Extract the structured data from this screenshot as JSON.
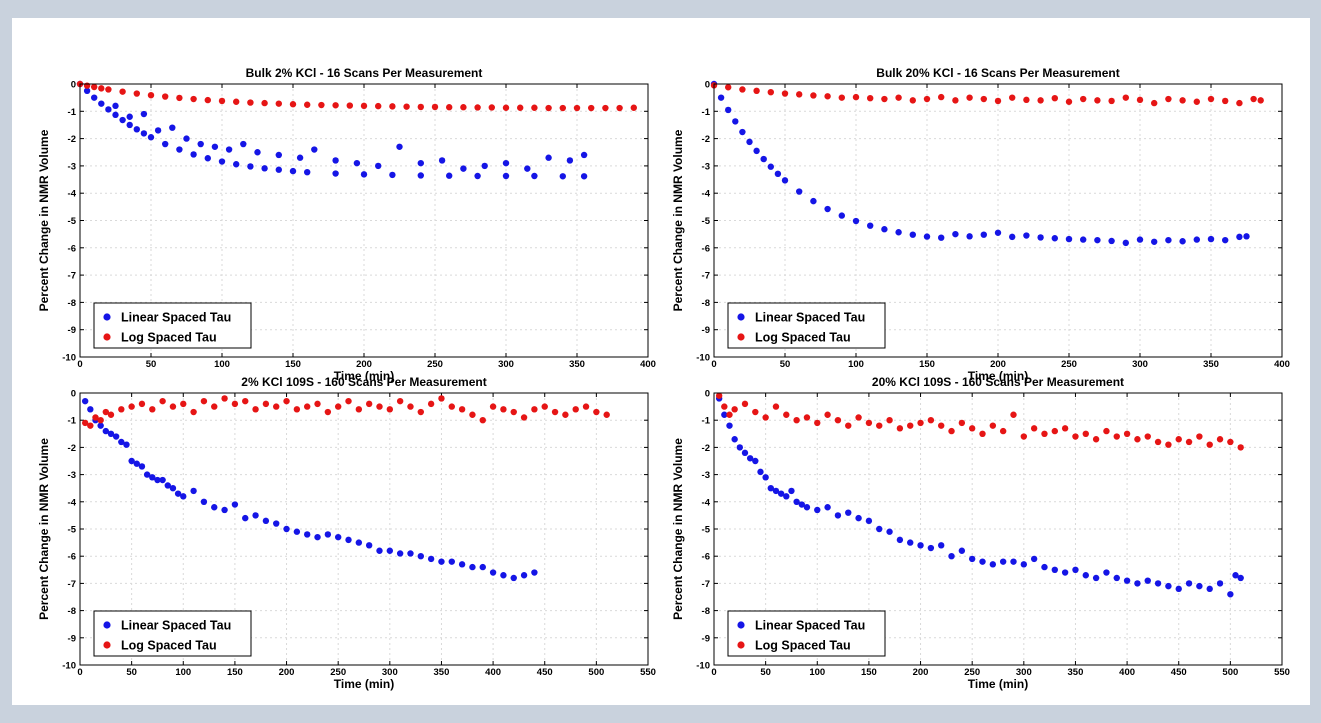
{
  "colors": {
    "linear": "#1515e6",
    "log": "#e61515",
    "page_border": "#c9d2dd"
  },
  "chart_data": [
    {
      "type": "scatter",
      "title": "Bulk 2% KCl - 16 Scans Per Measurement",
      "xlabel": "Time (min)",
      "ylabel": "Percent Change in NMR Volume",
      "xlim": [
        0,
        400
      ],
      "ylim": [
        -10,
        0
      ],
      "xticks": [
        0,
        50,
        100,
        150,
        200,
        250,
        300,
        350,
        400
      ],
      "yticks": [
        0,
        -1,
        -2,
        -3,
        -4,
        -5,
        -6,
        -7,
        -8,
        -9,
        -10
      ],
      "grid": true,
      "legend_position": "bottom-left",
      "series": [
        {
          "name": "Linear Spaced Tau",
          "color": "#1515e6",
          "x": [
            0,
            5,
            10,
            15,
            20,
            25,
            30,
            35,
            40,
            45,
            50,
            60,
            70,
            80,
            90,
            100,
            110,
            120,
            130,
            140,
            150,
            160,
            180,
            200,
            220,
            240,
            260,
            280,
            300,
            320,
            340,
            355,
            25,
            35,
            45,
            55,
            65,
            75,
            85,
            95,
            105,
            115,
            125,
            140,
            155,
            165,
            180,
            195,
            210,
            225,
            240,
            255,
            270,
            285,
            300,
            315,
            330,
            345,
            355
          ],
          "y": [
            0,
            -0.25,
            -0.5,
            -0.72,
            -0.93,
            -1.13,
            -1.32,
            -1.5,
            -1.66,
            -1.81,
            -1.95,
            -2.2,
            -2.4,
            -2.58,
            -2.72,
            -2.84,
            -2.94,
            -3.02,
            -3.09,
            -3.14,
            -3.19,
            -3.23,
            -3.28,
            -3.31,
            -3.33,
            -3.35,
            -3.36,
            -3.37,
            -3.37,
            -3.37,
            -3.38,
            -3.38,
            -0.8,
            -1.2,
            -1.1,
            -1.7,
            -1.6,
            -2.0,
            -2.2,
            -2.3,
            -2.4,
            -2.2,
            -2.5,
            -2.6,
            -2.7,
            -2.4,
            -2.8,
            -2.9,
            -3.0,
            -2.3,
            -2.9,
            -2.8,
            -3.1,
            -3.0,
            -2.9,
            -3.1,
            -2.7,
            -2.8,
            -2.6
          ]
        },
        {
          "name": "Log Spaced Tau",
          "color": "#e61515",
          "x": [
            0,
            5,
            10,
            15,
            20,
            30,
            40,
            50,
            60,
            70,
            80,
            90,
            100,
            110,
            120,
            130,
            140,
            150,
            160,
            170,
            180,
            190,
            200,
            210,
            220,
            230,
            240,
            250,
            260,
            270,
            280,
            290,
            300,
            310,
            320,
            330,
            340,
            350,
            360,
            370,
            380,
            390
          ],
          "y": [
            0,
            -0.06,
            -0.11,
            -0.16,
            -0.2,
            -0.28,
            -0.35,
            -0.41,
            -0.46,
            -0.51,
            -0.55,
            -0.59,
            -0.62,
            -0.65,
            -0.68,
            -0.7,
            -0.72,
            -0.74,
            -0.76,
            -0.77,
            -0.78,
            -0.79,
            -0.8,
            -0.81,
            -0.82,
            -0.83,
            -0.84,
            -0.84,
            -0.85,
            -0.85,
            -0.86,
            -0.86,
            -0.87,
            -0.87,
            -0.87,
            -0.88,
            -0.88,
            -0.88,
            -0.88,
            -0.88,
            -0.88,
            -0.87
          ]
        }
      ]
    },
    {
      "type": "scatter",
      "title": "Bulk 20% KCl - 16 Scans Per Measurement",
      "xlabel": "Time (min)",
      "ylabel": "Percent Change in NMR Volume",
      "xlim": [
        0,
        400
      ],
      "ylim": [
        -10,
        0
      ],
      "xticks": [
        0,
        50,
        100,
        150,
        200,
        250,
        300,
        350,
        400
      ],
      "yticks": [
        0,
        -1,
        -2,
        -3,
        -4,
        -5,
        -6,
        -7,
        -8,
        -9,
        -10
      ],
      "grid": true,
      "legend_position": "bottom-left",
      "series": [
        {
          "name": "Linear Spaced Tau",
          "color": "#1515e6",
          "x": [
            0,
            5,
            10,
            15,
            20,
            25,
            30,
            35,
            40,
            45,
            50,
            60,
            70,
            80,
            90,
            100,
            110,
            120,
            130,
            140,
            150,
            160,
            170,
            180,
            190,
            200,
            210,
            220,
            230,
            240,
            250,
            260,
            270,
            280,
            290,
            300,
            310,
            320,
            330,
            340,
            350,
            360,
            370,
            375
          ],
          "y": [
            0,
            -0.5,
            -0.95,
            -1.37,
            -1.76,
            -2.12,
            -2.45,
            -2.75,
            -3.03,
            -3.29,
            -3.53,
            -3.94,
            -4.29,
            -4.58,
            -4.82,
            -5.02,
            -5.19,
            -5.32,
            -5.43,
            -5.52,
            -5.59,
            -5.63,
            -5.5,
            -5.58,
            -5.52,
            -5.45,
            -5.6,
            -5.55,
            -5.62,
            -5.65,
            -5.68,
            -5.7,
            -5.72,
            -5.75,
            -5.82,
            -5.7,
            -5.78,
            -5.72,
            -5.76,
            -5.7,
            -5.68,
            -5.72,
            -5.6,
            -5.58
          ]
        },
        {
          "name": "Log Spaced Tau",
          "color": "#e61515",
          "x": [
            0,
            10,
            20,
            30,
            40,
            50,
            60,
            70,
            80,
            90,
            100,
            110,
            120,
            130,
            140,
            150,
            160,
            170,
            180,
            190,
            200,
            210,
            220,
            230,
            240,
            250,
            260,
            270,
            280,
            290,
            300,
            310,
            320,
            330,
            340,
            350,
            360,
            370,
            380,
            385
          ],
          "y": [
            -0.05,
            -0.12,
            -0.2,
            -0.25,
            -0.3,
            -0.35,
            -0.38,
            -0.42,
            -0.45,
            -0.5,
            -0.48,
            -0.52,
            -0.55,
            -0.5,
            -0.6,
            -0.55,
            -0.48,
            -0.6,
            -0.5,
            -0.55,
            -0.62,
            -0.5,
            -0.58,
            -0.6,
            -0.52,
            -0.65,
            -0.55,
            -0.6,
            -0.62,
            -0.5,
            -0.58,
            -0.7,
            -0.55,
            -0.6,
            -0.65,
            -0.55,
            -0.62,
            -0.7,
            -0.55,
            -0.6
          ]
        }
      ]
    },
    {
      "type": "scatter",
      "title": "2% KCl 109S - 160 Scans Per Measurement",
      "xlabel": "Time (min)",
      "ylabel": "Percent Change in NMR Volume",
      "xlim": [
        0,
        550
      ],
      "ylim": [
        -10,
        0
      ],
      "xticks": [
        0,
        50,
        100,
        150,
        200,
        250,
        300,
        350,
        400,
        450,
        500,
        550
      ],
      "yticks": [
        0,
        -1,
        -2,
        -3,
        -4,
        -5,
        -6,
        -7,
        -8,
        -9,
        -10
      ],
      "grid": true,
      "legend_position": "bottom-left",
      "series": [
        {
          "name": "Linear Spaced Tau",
          "color": "#1515e6",
          "x": [
            5,
            10,
            15,
            20,
            25,
            30,
            35,
            40,
            45,
            50,
            55,
            60,
            65,
            70,
            75,
            80,
            85,
            90,
            95,
            100,
            110,
            120,
            130,
            140,
            150,
            160,
            170,
            180,
            190,
            200,
            210,
            220,
            230,
            240,
            250,
            260,
            270,
            280,
            290,
            300,
            310,
            320,
            330,
            340,
            350,
            360,
            370,
            380,
            390,
            400,
            410,
            420,
            430,
            440
          ],
          "y": [
            -0.3,
            -0.6,
            -1.0,
            -1.2,
            -1.4,
            -1.5,
            -1.6,
            -1.8,
            -1.9,
            -2.5,
            -2.6,
            -2.7,
            -3.0,
            -3.1,
            -3.2,
            -3.2,
            -3.4,
            -3.5,
            -3.7,
            -3.8,
            -3.6,
            -4.0,
            -4.2,
            -4.3,
            -4.1,
            -4.6,
            -4.5,
            -4.7,
            -4.8,
            -5.0,
            -5.1,
            -5.2,
            -5.3,
            -5.2,
            -5.3,
            -5.4,
            -5.5,
            -5.6,
            -5.8,
            -5.8,
            -5.9,
            -5.9,
            -6.0,
            -6.1,
            -6.2,
            -6.2,
            -6.3,
            -6.4,
            -6.4,
            -6.6,
            -6.7,
            -6.8,
            -6.7,
            -6.6
          ]
        },
        {
          "name": "Log Spaced Tau",
          "color": "#e61515",
          "x": [
            5,
            10,
            15,
            20,
            25,
            30,
            40,
            50,
            60,
            70,
            80,
            90,
            100,
            110,
            120,
            130,
            140,
            150,
            160,
            170,
            180,
            190,
            200,
            210,
            220,
            230,
            240,
            250,
            260,
            270,
            280,
            290,
            300,
            310,
            320,
            330,
            340,
            350,
            360,
            370,
            380,
            390,
            400,
            410,
            420,
            430,
            440,
            450,
            460,
            470,
            480,
            490,
            500,
            510
          ],
          "y": [
            -1.1,
            -1.2,
            -0.9,
            -1.0,
            -0.7,
            -0.8,
            -0.6,
            -0.5,
            -0.4,
            -0.6,
            -0.3,
            -0.5,
            -0.4,
            -0.7,
            -0.3,
            -0.5,
            -0.2,
            -0.4,
            -0.3,
            -0.6,
            -0.4,
            -0.5,
            -0.3,
            -0.6,
            -0.5,
            -0.4,
            -0.7,
            -0.5,
            -0.3,
            -0.6,
            -0.4,
            -0.5,
            -0.6,
            -0.3,
            -0.5,
            -0.7,
            -0.4,
            -0.2,
            -0.5,
            -0.6,
            -0.8,
            -1.0,
            -0.5,
            -0.6,
            -0.7,
            -0.9,
            -0.6,
            -0.5,
            -0.7,
            -0.8,
            -0.6,
            -0.5,
            -0.7,
            -0.8
          ]
        }
      ]
    },
    {
      "type": "scatter",
      "title": "20% KCl 109S - 160 Scans Per Measurement",
      "xlabel": "Time (min)",
      "ylabel": "Percent Change in NMR Volume",
      "xlim": [
        0,
        550
      ],
      "ylim": [
        -10,
        0
      ],
      "xticks": [
        0,
        50,
        100,
        150,
        200,
        250,
        300,
        350,
        400,
        450,
        500,
        550
      ],
      "yticks": [
        0,
        -1,
        -2,
        -3,
        -4,
        -5,
        -6,
        -7,
        -8,
        -9,
        -10
      ],
      "grid": true,
      "legend_position": "bottom-left",
      "series": [
        {
          "name": "Linear Spaced Tau",
          "color": "#1515e6",
          "x": [
            5,
            10,
            15,
            20,
            25,
            30,
            35,
            40,
            45,
            50,
            55,
            60,
            65,
            70,
            75,
            80,
            85,
            90,
            100,
            110,
            120,
            130,
            140,
            150,
            160,
            170,
            180,
            190,
            200,
            210,
            220,
            230,
            240,
            250,
            260,
            270,
            280,
            290,
            300,
            310,
            320,
            330,
            340,
            350,
            360,
            370,
            380,
            390,
            400,
            410,
            420,
            430,
            440,
            450,
            460,
            470,
            480,
            490,
            500,
            505,
            510
          ],
          "y": [
            -0.2,
            -0.8,
            -1.2,
            -1.7,
            -2.0,
            -2.2,
            -2.4,
            -2.5,
            -2.9,
            -3.1,
            -3.5,
            -3.6,
            -3.7,
            -3.8,
            -3.6,
            -4.0,
            -4.1,
            -4.2,
            -4.3,
            -4.2,
            -4.5,
            -4.4,
            -4.6,
            -4.7,
            -5.0,
            -5.1,
            -5.4,
            -5.5,
            -5.6,
            -5.7,
            -5.6,
            -6.0,
            -5.8,
            -6.1,
            -6.2,
            -6.3,
            -6.2,
            -6.2,
            -6.3,
            -6.1,
            -6.4,
            -6.5,
            -6.6,
            -6.5,
            -6.7,
            -6.8,
            -6.6,
            -6.8,
            -6.9,
            -7.0,
            -6.9,
            -7.0,
            -7.1,
            -7.2,
            -7.0,
            -7.1,
            -7.2,
            -7.0,
            -7.4,
            -6.7,
            -6.8
          ]
        },
        {
          "name": "Log Spaced Tau",
          "color": "#e61515",
          "x": [
            5,
            10,
            15,
            20,
            30,
            40,
            50,
            60,
            70,
            80,
            90,
            100,
            110,
            120,
            130,
            140,
            150,
            160,
            170,
            180,
            190,
            200,
            210,
            220,
            230,
            240,
            250,
            260,
            270,
            280,
            290,
            300,
            310,
            320,
            330,
            340,
            350,
            360,
            370,
            380,
            390,
            400,
            410,
            420,
            430,
            440,
            450,
            460,
            470,
            480,
            490,
            500,
            510
          ],
          "y": [
            -0.1,
            -0.5,
            -0.8,
            -0.6,
            -0.4,
            -0.7,
            -0.9,
            -0.5,
            -0.8,
            -1.0,
            -0.9,
            -1.1,
            -0.8,
            -1.0,
            -1.2,
            -0.9,
            -1.1,
            -1.2,
            -1.0,
            -1.3,
            -1.2,
            -1.1,
            -1.0,
            -1.2,
            -1.4,
            -1.1,
            -1.3,
            -1.5,
            -1.2,
            -1.4,
            -0.8,
            -1.6,
            -1.3,
            -1.5,
            -1.4,
            -1.3,
            -1.6,
            -1.5,
            -1.7,
            -1.4,
            -1.6,
            -1.5,
            -1.7,
            -1.6,
            -1.8,
            -1.9,
            -1.7,
            -1.8,
            -1.6,
            -1.9,
            -1.7,
            -1.8,
            -2.0
          ]
        }
      ]
    }
  ]
}
